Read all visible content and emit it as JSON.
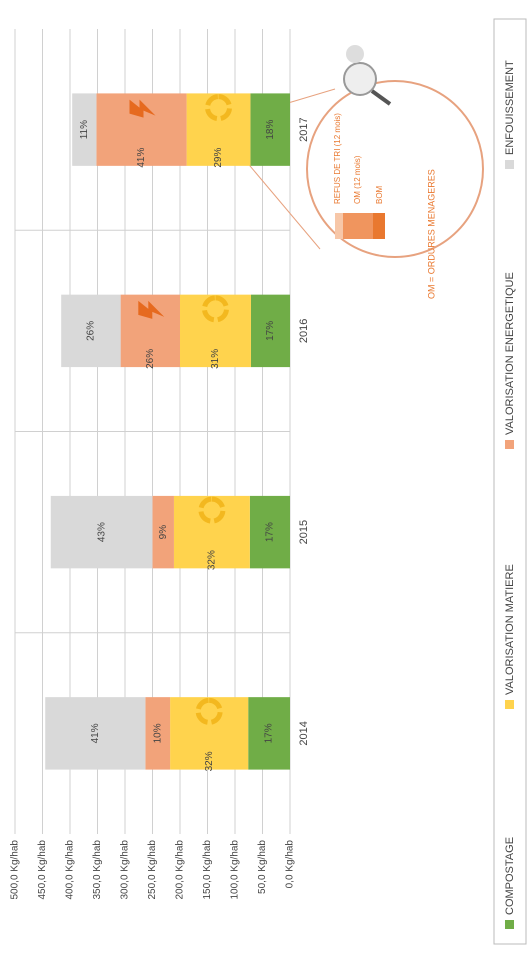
{
  "chart_data": {
    "type": "bar",
    "stacked": true,
    "categories": [
      "2014",
      "2015",
      "2016",
      "2017"
    ],
    "series": [
      {
        "name": "COMPOSTAGE",
        "color": "#70ad47",
        "values": [
          76,
          73,
          71,
          72
        ],
        "value_labels": [
          "17%",
          "17%",
          "17%",
          "18%"
        ]
      },
      {
        "name": "VALORISATION MATIERE",
        "color": "#ffd34d",
        "values": [
          142,
          138,
          129,
          116
        ],
        "value_labels": [
          "32%",
          "32%",
          "31%",
          "29%"
        ]
      },
      {
        "name": "VALORISATION ENERGETIQUE",
        "color": "#f2a37a",
        "values": [
          45,
          39,
          108,
          164
        ],
        "value_labels": [
          "10%",
          "9%",
          "26%",
          "41%"
        ]
      },
      {
        "name": "ENFOUISSEMENT",
        "color": "#d9d9d9",
        "values": [
          182,
          185,
          108,
          44
        ],
        "value_labels": [
          "41%",
          "43%",
          "26%",
          "11%"
        ]
      }
    ],
    "ylim": [
      0,
      500
    ],
    "yticks": [
      {
        "value": 0,
        "label": "0,0 Kg/hab"
      },
      {
        "value": 50,
        "label": "50,0 Kg/hab"
      },
      {
        "value": 100,
        "label": "100,0 Kg/hab"
      },
      {
        "value": 150,
        "label": "150,0 Kg/hab"
      },
      {
        "value": 200,
        "label": "200,0 Kg/hab"
      },
      {
        "value": 250,
        "label": "250,0 Kg/hab"
      },
      {
        "value": 300,
        "label": "300,0 Kg/hab"
      },
      {
        "value": 350,
        "label": "350,0 Kg/hab"
      },
      {
        "value": 400,
        "label": "400,0 Kg/hab"
      },
      {
        "value": 450,
        "label": "450,0 Kg/hab"
      },
      {
        "value": 500,
        "label": "500,0 Kg/hab"
      }
    ],
    "grid": true,
    "legend": "bottom",
    "annotations": [
      "REFUS DE TRI (12 mois)",
      "OM (12 mois)",
      "BOM",
      "OM = ORDURES MENAGERES"
    ]
  }
}
